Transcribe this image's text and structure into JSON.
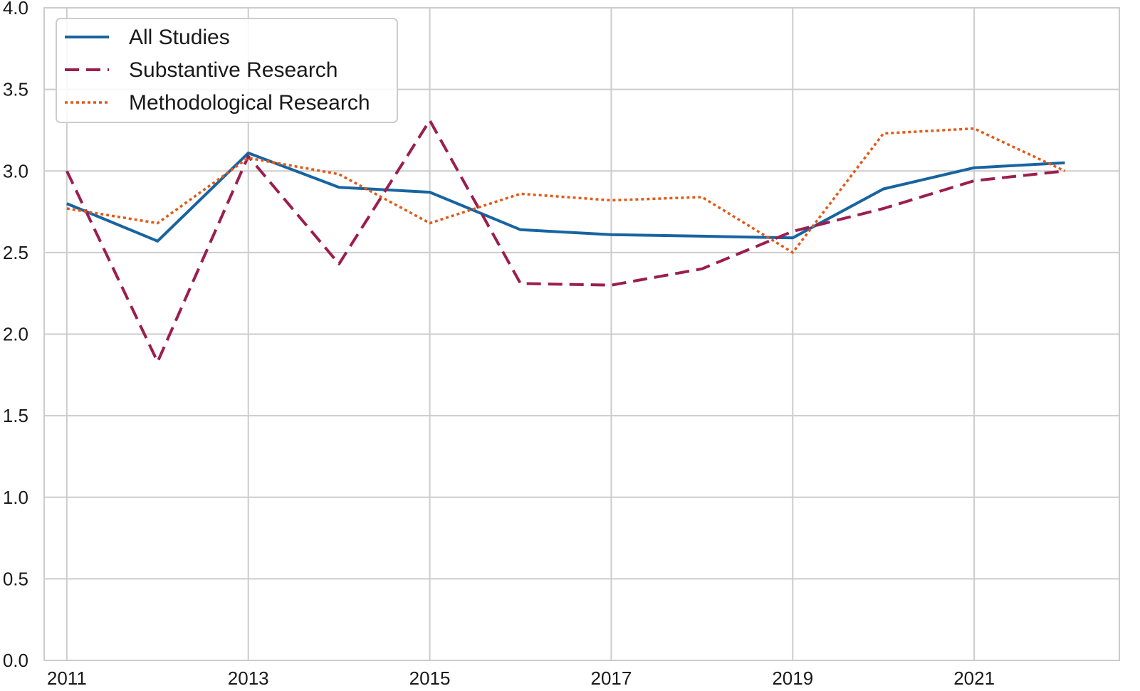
{
  "chart_data": {
    "type": "line",
    "title": "",
    "xlabel": "",
    "ylabel": "",
    "xlim": [
      2010.75,
      2022.6
    ],
    "ylim": [
      0.0,
      4.0
    ],
    "grid": true,
    "legend_position": "top-left",
    "x_ticks": [
      2011,
      2013,
      2015,
      2017,
      2019,
      2021
    ],
    "x_tick_labels": [
      "2011",
      "2013",
      "2015",
      "2017",
      "2019",
      "2021"
    ],
    "y_ticks": [
      0.0,
      0.5,
      1.0,
      1.5,
      2.0,
      2.5,
      3.0,
      3.5,
      4.0
    ],
    "y_tick_labels": [
      "0.0",
      "0.5",
      "1.0",
      "1.5",
      "2.0",
      "2.5",
      "3.0",
      "3.5",
      "4.0"
    ],
    "x": [
      2011,
      2012,
      2013,
      2014,
      2015,
      2016,
      2017,
      2018,
      2019,
      2020,
      2021,
      2022
    ],
    "series": [
      {
        "name": "All Studies",
        "color": "#1764a0",
        "line_style": "solid",
        "values": [
          2.8,
          2.57,
          3.11,
          2.9,
          2.87,
          2.64,
          2.61,
          2.6,
          2.59,
          2.89,
          3.02,
          3.05
        ]
      },
      {
        "name": "Substantive Research",
        "color": "#9b1e4e",
        "line_style": "dashed",
        "values": [
          3.0,
          1.83,
          3.09,
          2.43,
          3.31,
          2.31,
          2.3,
          2.4,
          2.63,
          2.77,
          2.94,
          3.0
        ]
      },
      {
        "name": "Methodological Research",
        "color": "#e05a1a",
        "line_style": "dotted",
        "values": [
          2.77,
          2.68,
          3.08,
          2.98,
          2.68,
          2.86,
          2.82,
          2.84,
          2.5,
          3.23,
          3.26,
          3.0
        ]
      }
    ]
  }
}
